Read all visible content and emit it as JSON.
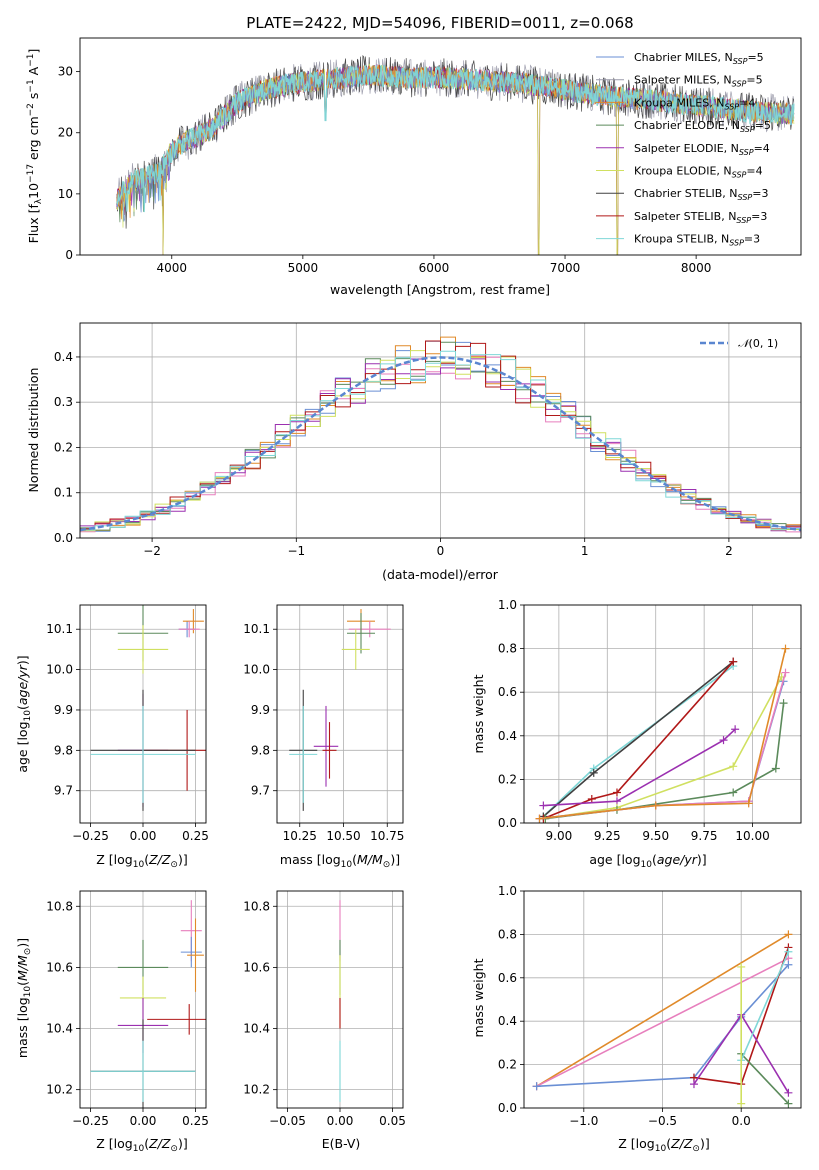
{
  "title": "PLATE=2422, MJD=54096, FIBERID=0011, z=0.068",
  "colors": {
    "chabrier_miles": "#6a8fd4",
    "salpeter_miles": "#9a9aaa",
    "kroupa_miles": "#e08a2a",
    "chabrier_elodie": "#5b8a5b",
    "salpeter_elodie": "#9b30b0",
    "kroupa_elodie": "#d0e060",
    "chabrier_stelib": "#404040",
    "salpeter_stelib": "#b01818",
    "kroupa_stelib": "#7fd7d7",
    "pink": "#e77fbd",
    "normal": "#5a86d0"
  },
  "legend": [
    {
      "key": "chabrier_miles",
      "label": "Chabrier MILES, N",
      "sub": "SSP",
      "tail": "=5"
    },
    {
      "key": "salpeter_miles",
      "label": "Salpeter MILES, N",
      "sub": "SSP",
      "tail": "=5"
    },
    {
      "key": "kroupa_miles",
      "label": "Kroupa MILES, N",
      "sub": "SSP",
      "tail": "=4"
    },
    {
      "key": "chabrier_elodie",
      "label": "Chabrier ELODIE, N",
      "sub": "SSP",
      "tail": "=5"
    },
    {
      "key": "salpeter_elodie",
      "label": "Salpeter ELODIE, N",
      "sub": "SSP",
      "tail": "=4"
    },
    {
      "key": "kroupa_elodie",
      "label": "Kroupa ELODIE, N",
      "sub": "SSP",
      "tail": "=4"
    },
    {
      "key": "chabrier_stelib",
      "label": "Chabrier STELIB, N",
      "sub": "SSP",
      "tail": "=3"
    },
    {
      "key": "salpeter_stelib",
      "label": "Salpeter STELIB, N",
      "sub": "SSP",
      "tail": "=3"
    },
    {
      "key": "kroupa_stelib",
      "label": "Kroupa STELIB, N",
      "sub": "SSP",
      "tail": "=3"
    }
  ],
  "chart_data": [
    {
      "id": "spectrum",
      "type": "line",
      "xlabel": "wavelength [Angstrom, rest frame]",
      "ylabel": "Flux [f",
      "xlim": [
        3300,
        8800
      ],
      "ylim": [
        0,
        35.5
      ],
      "xticks": [
        4000,
        5000,
        6000,
        7000,
        8000
      ],
      "yticks": [
        0,
        10,
        20,
        30
      ],
      "continuum": [
        [
          3580,
          9
        ],
        [
          3700,
          12
        ],
        [
          3900,
          13.5
        ],
        [
          4000,
          17
        ],
        [
          4100,
          18.5
        ],
        [
          4300,
          20.5
        ],
        [
          4500,
          25
        ],
        [
          4700,
          27
        ],
        [
          4900,
          28
        ],
        [
          5100,
          28.5
        ],
        [
          5300,
          29
        ],
        [
          5500,
          29.5
        ],
        [
          5800,
          29
        ],
        [
          6100,
          29
        ],
        [
          6400,
          28.5
        ],
        [
          6700,
          28
        ],
        [
          7000,
          27
        ],
        [
          7300,
          26
        ],
        [
          7600,
          25.5
        ],
        [
          8000,
          24.5
        ],
        [
          8400,
          23.5
        ],
        [
          8750,
          23
        ]
      ],
      "dips": [
        [
          3934,
          0
        ],
        [
          5175,
          22
        ],
        [
          6800,
          0
        ],
        [
          7400,
          0
        ]
      ]
    },
    {
      "id": "residuals",
      "type": "step",
      "xlabel": "(data-model)/error",
      "ylabel": "Normed distribution",
      "xlim": [
        -2.5,
        2.5
      ],
      "ylim": [
        0,
        0.475
      ],
      "xticks": [
        -2,
        -1,
        0,
        1,
        2
      ],
      "yticks": [
        0.0,
        0.1,
        0.2,
        0.3,
        0.4
      ],
      "normal_label": "(0, 1)",
      "bins": 48
    },
    {
      "id": "age_vs_Z",
      "type": "errorbar",
      "xlabel": "Z [log",
      "ylabel": "age  [log",
      "xlim": [
        -0.3,
        0.3
      ],
      "ylim": [
        9.62,
        10.16
      ],
      "xticks": [
        -0.25,
        0.0,
        0.25
      ],
      "xticklabels": [
        "−0.25",
        "0.00",
        "0.25"
      ],
      "yticks": [
        9.7,
        9.8,
        9.9,
        10.0,
        10.1
      ],
      "points": [
        {
          "key": "chabrier_miles",
          "x": 0.21,
          "xe": 0.04,
          "y": 10.1,
          "ye": 0.02
        },
        {
          "key": "kroupa_miles",
          "x": 0.24,
          "xe": 0.05,
          "y": 10.12,
          "ye": 0.03
        },
        {
          "key": "pink",
          "x": 0.22,
          "xe": 0.05,
          "y": 10.1,
          "ye": 0.02
        },
        {
          "key": "chabrier_elodie",
          "x": 0.0,
          "xe": 0.12,
          "y": 10.09,
          "ye": 0.07
        },
        {
          "key": "kroupa_elodie",
          "x": 0.0,
          "xe": 0.12,
          "y": 10.05,
          "ye": 0.06
        },
        {
          "key": "salpeter_elodie",
          "x": 0.0,
          "xe": 0.12,
          "y": 9.8,
          "ye": 0.14
        },
        {
          "key": "salpeter_stelib",
          "x": 0.21,
          "xe": 0.21,
          "y": 9.8,
          "ye": 0.1
        },
        {
          "key": "chabrier_stelib",
          "x": 0.0,
          "xe": 0.25,
          "y": 9.8,
          "ye": 0.15
        },
        {
          "key": "kroupa_stelib",
          "x": 0.0,
          "xe": 0.25,
          "y": 9.79,
          "ye": 0.12
        }
      ]
    },
    {
      "id": "age_vs_mass",
      "type": "errorbar",
      "xlabel": "mass [log",
      "xlim": [
        10.12,
        10.84
      ],
      "ylim": [
        9.62,
        10.16
      ],
      "xticks": [
        10.25,
        10.5,
        10.75
      ],
      "xticklabels": [
        "10.25",
        "10.50",
        "10.75"
      ],
      "yticks": [
        9.7,
        9.8,
        9.9,
        10.0,
        10.1
      ],
      "points": [
        {
          "key": "kroupa_miles",
          "x": 10.6,
          "xe": 0.08,
          "y": 10.12,
          "ye": 0.03
        },
        {
          "key": "pink",
          "x": 10.65,
          "xe": 0.12,
          "y": 10.1,
          "ye": 0.02
        },
        {
          "key": "chabrier_elodie",
          "x": 10.6,
          "xe": 0.08,
          "y": 10.09,
          "ye": 0.05
        },
        {
          "key": "kroupa_elodie",
          "x": 10.57,
          "xe": 0.08,
          "y": 10.05,
          "ye": 0.05
        },
        {
          "key": "salpeter_elodie",
          "x": 10.4,
          "xe": 0.07,
          "y": 9.81,
          "ye": 0.1
        },
        {
          "key": "salpeter_stelib",
          "x": 10.42,
          "xe": 0.04,
          "y": 9.8,
          "ye": 0.07
        },
        {
          "key": "chabrier_stelib",
          "x": 10.27,
          "xe": 0.08,
          "y": 9.8,
          "ye": 0.15
        },
        {
          "key": "kroupa_stelib",
          "x": 10.27,
          "xe": 0.08,
          "y": 9.79,
          "ye": 0.12
        }
      ]
    },
    {
      "id": "weight_vs_age",
      "type": "line",
      "xlabel": "age  [log",
      "ylabel": "mass weight",
      "xlim": [
        8.82,
        10.25
      ],
      "ylim": [
        0,
        1.0
      ],
      "xticks": [
        9.0,
        9.25,
        9.5,
        9.75,
        10.0
      ],
      "xticklabels": [
        "9.00",
        "9.25",
        "9.50",
        "9.75",
        "10.00"
      ],
      "yticks": [
        0.0,
        0.2,
        0.4,
        0.6,
        0.8,
        1.0
      ],
      "series": [
        {
          "key": "kroupa_stelib",
          "x": [
            8.92,
            9.18,
            9.9
          ],
          "y": [
            0.03,
            0.25,
            0.72
          ]
        },
        {
          "key": "chabrier_stelib",
          "x": [
            8.92,
            9.18,
            9.9
          ],
          "y": [
            0.03,
            0.23,
            0.74
          ]
        },
        {
          "key": "salpeter_stelib",
          "x": [
            8.92,
            9.17,
            9.3,
            9.9
          ],
          "y": [
            0.02,
            0.11,
            0.14,
            0.74
          ]
        },
        {
          "key": "salpeter_elodie",
          "x": [
            8.92,
            9.3,
            9.85,
            9.91
          ],
          "y": [
            0.08,
            0.1,
            0.38,
            0.43
          ]
        },
        {
          "key": "kroupa_elodie",
          "x": [
            8.93,
            9.3,
            9.9,
            10.15
          ],
          "y": [
            0.02,
            0.07,
            0.26,
            0.67
          ]
        },
        {
          "key": "chabrier_elodie",
          "x": [
            8.93,
            9.3,
            9.9,
            10.12,
            10.16
          ],
          "y": [
            0.02,
            0.06,
            0.14,
            0.25,
            0.55
          ]
        },
        {
          "key": "chabrier_miles",
          "x": [
            8.9,
            9.5,
            9.98,
            10.16
          ],
          "y": [
            0.02,
            0.08,
            0.1,
            0.65
          ]
        },
        {
          "key": "pink",
          "x": [
            8.9,
            9.5,
            9.98,
            10.17
          ],
          "y": [
            0.02,
            0.08,
            0.1,
            0.69
          ]
        },
        {
          "key": "kroupa_miles",
          "x": [
            8.9,
            9.5,
            9.98,
            10.17
          ],
          "y": [
            0.02,
            0.08,
            0.09,
            0.8
          ]
        }
      ]
    },
    {
      "id": "mass_vs_Z",
      "type": "errorbar",
      "xlabel": "Z [log",
      "ylabel": "mass [log",
      "xlim": [
        -0.3,
        0.3
      ],
      "ylim": [
        10.14,
        10.85
      ],
      "xticks": [
        -0.25,
        0.0,
        0.25
      ],
      "xticklabels": [
        "−0.25",
        "0.00",
        "0.25"
      ],
      "yticks": [
        10.2,
        10.4,
        10.6,
        10.8
      ],
      "points": [
        {
          "key": "pink",
          "x": 0.23,
          "xe": 0.05,
          "y": 10.72,
          "ye": 0.1
        },
        {
          "key": "chabrier_miles",
          "x": 0.23,
          "xe": 0.05,
          "y": 10.65,
          "ye": 0.05
        },
        {
          "key": "kroupa_miles",
          "x": 0.25,
          "xe": 0.04,
          "y": 10.64,
          "ye": 0.12
        },
        {
          "key": "chabrier_elodie",
          "x": 0.0,
          "xe": 0.12,
          "y": 10.6,
          "ye": 0.09
        },
        {
          "key": "kroupa_elodie",
          "x": 0.0,
          "xe": 0.11,
          "y": 10.5,
          "ye": 0.07
        },
        {
          "key": "salpeter_stelib",
          "x": 0.22,
          "xe": 0.2,
          "y": 10.43,
          "ye": 0.05
        },
        {
          "key": "salpeter_elodie",
          "x": 0.0,
          "xe": 0.12,
          "y": 10.41,
          "ye": 0.09
        },
        {
          "key": "chabrier_stelib",
          "x": 0.0,
          "xe": 0.25,
          "y": 10.26,
          "ye": 0.17
        },
        {
          "key": "kroupa_stelib",
          "x": 0.0,
          "xe": 0.25,
          "y": 10.26,
          "ye": 0.1
        }
      ]
    },
    {
      "id": "mass_vs_ebv",
      "type": "errorbar",
      "xlabel": "E(B-V)",
      "xlim": [
        -0.06,
        0.06
      ],
      "ylim": [
        10.14,
        10.85
      ],
      "xticks": [
        -0.05,
        0.0,
        0.05
      ],
      "xticklabels": [
        "−0.05",
        "0.00",
        "0.05"
      ],
      "yticks": [
        10.2,
        10.4,
        10.6,
        10.8
      ],
      "points": [
        {
          "key": "pink",
          "x": 0.0,
          "xe": 0.0,
          "y": 10.72,
          "ye": 0.1
        },
        {
          "key": "chabrier_elodie",
          "x": 0.0,
          "xe": 0.0,
          "y": 10.6,
          "ye": 0.09
        },
        {
          "key": "kroupa_elodie",
          "x": 0.0,
          "xe": 0.0,
          "y": 10.52,
          "ye": 0.12
        },
        {
          "key": "salpeter_stelib",
          "x": 0.0,
          "xe": 0.0,
          "y": 10.45,
          "ye": 0.05
        },
        {
          "key": "kroupa_stelib",
          "x": 0.0,
          "xe": 0.0,
          "y": 10.26,
          "ye": 0.1
        }
      ]
    },
    {
      "id": "weight_vs_Z",
      "type": "line",
      "xlabel": "Z [log",
      "ylabel": "mass weight",
      "xlim": [
        -1.38,
        0.38
      ],
      "ylim": [
        0,
        1.0
      ],
      "xticks": [
        -1.0,
        -0.5,
        0.0
      ],
      "xticklabels": [
        "−1.0",
        "−0.5",
        "0.0"
      ],
      "yticks": [
        0.0,
        0.2,
        0.4,
        0.6,
        0.8,
        1.0
      ],
      "series": [
        {
          "key": "kroupa_miles",
          "x": [
            -1.3,
            0.3
          ],
          "y": [
            0.1,
            0.8
          ]
        },
        {
          "key": "pink",
          "x": [
            -1.3,
            0.3
          ],
          "y": [
            0.1,
            0.69
          ]
        },
        {
          "key": "chabrier_miles",
          "x": [
            -1.3,
            -0.3,
            0.0,
            0.3
          ],
          "y": [
            0.1,
            0.14,
            0.42,
            0.66
          ]
        },
        {
          "key": "salpeter_stelib",
          "x": [
            -0.3,
            0.0,
            0.3
          ],
          "y": [
            0.14,
            0.11,
            0.74
          ]
        },
        {
          "key": "salpeter_elodie",
          "x": [
            -0.3,
            0.0,
            0.3
          ],
          "y": [
            0.11,
            0.43,
            0.07
          ]
        },
        {
          "key": "chabrier_elodie",
          "x": [
            0.0,
            0.3
          ],
          "y": [
            0.25,
            0.02
          ]
        },
        {
          "key": "kroupa_stelib",
          "x": [
            0.0,
            0.3
          ],
          "y": [
            0.22,
            0.72
          ]
        },
        {
          "key": "kroupa_elodie",
          "x": [
            0.0,
            0.0
          ],
          "y": [
            0.02,
            0.65
          ]
        }
      ]
    }
  ]
}
